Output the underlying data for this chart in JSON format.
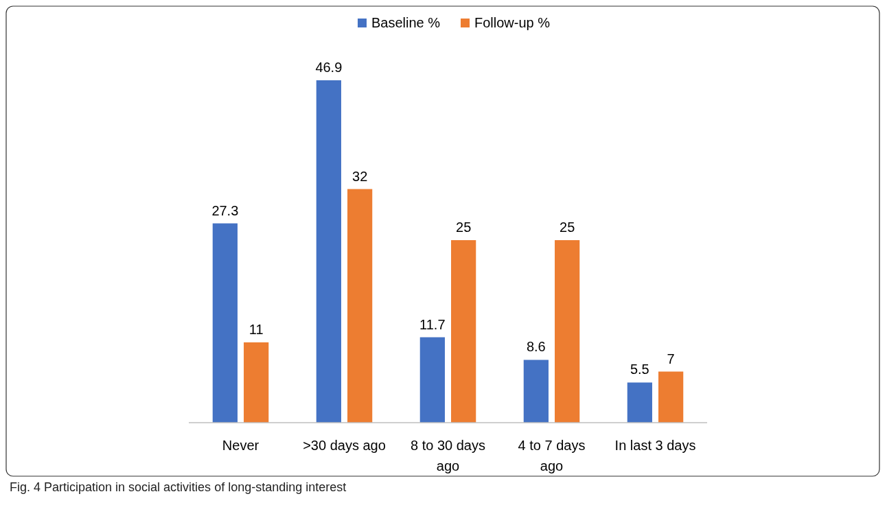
{
  "chart_data": {
    "type": "bar",
    "categories": [
      "Never",
      ">30 days ago",
      "8 to 30 days ago",
      "4 to 7 days ago",
      "In last 3 days"
    ],
    "series": [
      {
        "name": "Baseline %",
        "color": "#4472c4",
        "values": [
          27.3,
          46.9,
          11.7,
          8.6,
          5.5
        ]
      },
      {
        "name": "Follow-up %",
        "color": "#ed7d31",
        "values": [
          11,
          32,
          25,
          25,
          7
        ]
      }
    ],
    "data_labels": true,
    "legend": "top",
    "annotations": [
      "Fig. 4 Participation in social activities of long-standing interest"
    ]
  }
}
